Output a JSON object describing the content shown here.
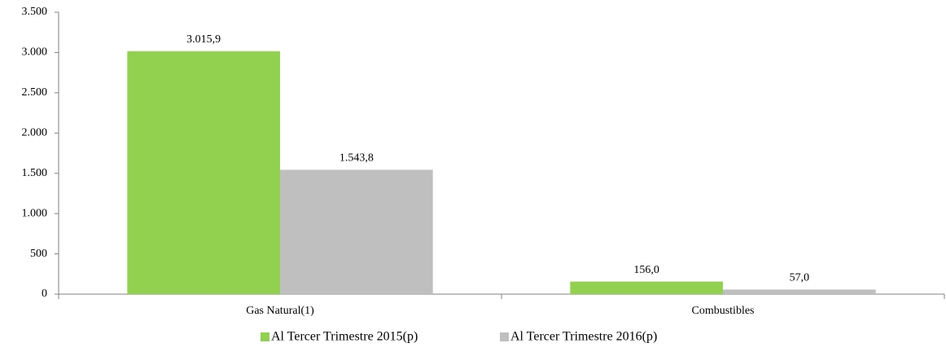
{
  "chart_data": {
    "type": "bar",
    "categories": [
      "Gas Natural(1)",
      "Combustibles"
    ],
    "series": [
      {
        "name": "Al Tercer Trimestre 2015(p)",
        "color": "#92d050",
        "values": [
          3015.9,
          156.0
        ],
        "value_labels": [
          "3.015,9",
          "156,0"
        ]
      },
      {
        "name": "Al Tercer Trimestre 2016(p)",
        "color": "#bfbfbf",
        "values": [
          1543.8,
          57.0
        ],
        "value_labels": [
          "1.543,8",
          "57,0"
        ]
      }
    ],
    "ylim": [
      0,
      3500
    ],
    "yticks": [
      0,
      500,
      {
        "value": 1000,
        "label": "1.000"
      },
      {
        "value": 1500,
        "label": "1.500"
      },
      {
        "value": 2000,
        "label": "2.000"
      },
      {
        "value": 2500,
        "label": "2.500"
      },
      {
        "value": 3000,
        "label": "3.000"
      },
      {
        "value": 3500,
        "label": "3.500"
      }
    ],
    "grid": false,
    "legend": "bottom"
  }
}
